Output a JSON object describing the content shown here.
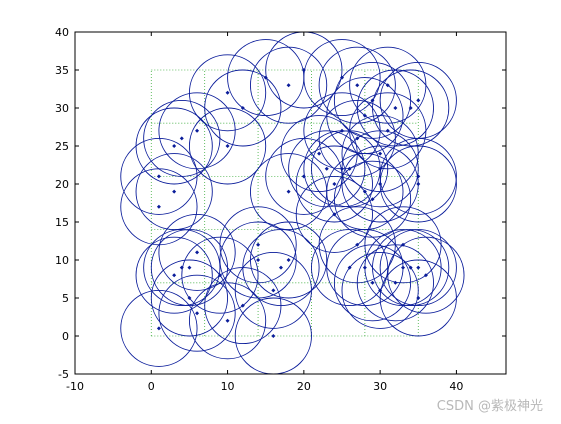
{
  "colors": {
    "circle": "#0a1c9a",
    "point": "#0a1c9a",
    "grid": "#3fae3f",
    "axis": "#000000",
    "background": "#ffffff"
  },
  "watermark": "CSDN @紫极神光",
  "chart_data": {
    "type": "scatter",
    "title": "",
    "xlabel": "",
    "ylabel": "",
    "xlim": [
      -10,
      46.5
    ],
    "ylim": [
      -5,
      40
    ],
    "xticks": [
      -10,
      0,
      10,
      20,
      30,
      40
    ],
    "yticks": [
      -5,
      0,
      5,
      10,
      15,
      20,
      25,
      30,
      35,
      40
    ],
    "xtick_labels": [
      "-10",
      "0",
      "10",
      "20",
      "30",
      "40"
    ],
    "ytick_labels": [
      "-5",
      "0",
      "5",
      "10",
      "15",
      "20",
      "25",
      "30",
      "35",
      "40"
    ],
    "coverage_radius": 5,
    "grid": {
      "style": "dotted",
      "x_range": [
        0,
        35
      ],
      "y_range": [
        0,
        35
      ],
      "x_lines": [
        0,
        7,
        14,
        21,
        28,
        35
      ],
      "y_lines": [
        0,
        7,
        14,
        21,
        28,
        35
      ]
    },
    "points": [
      [
        1,
        1
      ],
      [
        5,
        5
      ],
      [
        6,
        3
      ],
      [
        10,
        2
      ],
      [
        12,
        4
      ],
      [
        16,
        0
      ],
      [
        16,
        6
      ],
      [
        3,
        8
      ],
      [
        4,
        9
      ],
      [
        5,
        9
      ],
      [
        6,
        11
      ],
      [
        9,
        8
      ],
      [
        14,
        12
      ],
      [
        14,
        10
      ],
      [
        17,
        9
      ],
      [
        18,
        10
      ],
      [
        1,
        17
      ],
      [
        1,
        21
      ],
      [
        3,
        19
      ],
      [
        3,
        25
      ],
      [
        4,
        26
      ],
      [
        6,
        27
      ],
      [
        10,
        25
      ],
      [
        10,
        32
      ],
      [
        12,
        30
      ],
      [
        15,
        34
      ],
      [
        18,
        33
      ],
      [
        20,
        35
      ],
      [
        18,
        19
      ],
      [
        20,
        21
      ],
      [
        22,
        24
      ],
      [
        23,
        22
      ],
      [
        24,
        20
      ],
      [
        24,
        16
      ],
      [
        25,
        22
      ],
      [
        25,
        27
      ],
      [
        25,
        34
      ],
      [
        26,
        22
      ],
      [
        27,
        33
      ],
      [
        28,
        29
      ],
      [
        28,
        19
      ],
      [
        30,
        24
      ],
      [
        30,
        22
      ],
      [
        30,
        20
      ],
      [
        29,
        31
      ],
      [
        31,
        33
      ],
      [
        32,
        30
      ],
      [
        34,
        30
      ],
      [
        35,
        31
      ],
      [
        35,
        21
      ],
      [
        35,
        20
      ],
      [
        31,
        27
      ],
      [
        27,
        26
      ],
      [
        29,
        18
      ],
      [
        26,
        9
      ],
      [
        28,
        9
      ],
      [
        29,
        7
      ],
      [
        30,
        6
      ],
      [
        32,
        7
      ],
      [
        33,
        9
      ],
      [
        33,
        12
      ],
      [
        34,
        9
      ],
      [
        35,
        9
      ],
      [
        36,
        8
      ],
      [
        35,
        5
      ],
      [
        27,
        12
      ]
    ]
  }
}
